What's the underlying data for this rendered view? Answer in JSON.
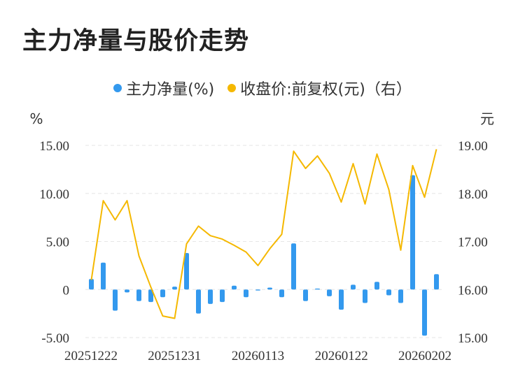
{
  "chart_data": {
    "type": "bar+line",
    "title": "主力净量与股价走势",
    "left_unit": "%",
    "right_unit": "元",
    "legend": [
      {
        "name": "主力净量(%)",
        "color": "#3399ee"
      },
      {
        "name": "收盘价:前复权(元)（右）",
        "color": "#f5b800"
      }
    ],
    "x_tick_labels": [
      "20251222",
      "20251231",
      "20260113",
      "20260122",
      "20260202"
    ],
    "left_axis": {
      "ticks": [
        "-5.00",
        "0",
        "5.00",
        "10.00",
        "15.00"
      ],
      "ylim": [
        -5,
        15
      ]
    },
    "right_axis": {
      "ticks": [
        "15.00",
        "16.00",
        "17.00",
        "18.00",
        "19.00"
      ],
      "ylim": [
        15,
        19
      ]
    },
    "series": [
      {
        "name": "主力净量(%)",
        "type": "bar",
        "color": "#3399ee",
        "values": [
          1.1,
          2.8,
          -2.2,
          -0.3,
          -1.2,
          -1.3,
          -0.8,
          0.3,
          3.8,
          -2.5,
          -1.5,
          -1.3,
          0.4,
          -0.8,
          -0.1,
          0.2,
          -0.8,
          4.8,
          -1.2,
          0.1,
          -0.7,
          -2.1,
          0.5,
          -1.4,
          0.8,
          -0.6,
          -1.4,
          11.9,
          -4.8,
          1.6
        ]
      },
      {
        "name": "收盘价:前复权(元)（右）",
        "type": "line",
        "color": "#f5b800",
        "values": [
          16.2,
          17.85,
          17.45,
          17.85,
          16.7,
          16.05,
          15.45,
          15.4,
          16.95,
          17.32,
          17.12,
          17.05,
          16.92,
          16.78,
          16.5,
          16.85,
          17.15,
          18.88,
          18.52,
          18.78,
          18.42,
          17.82,
          18.62,
          17.78,
          18.82,
          18.08,
          16.82,
          18.58,
          17.92,
          18.92
        ]
      }
    ]
  }
}
